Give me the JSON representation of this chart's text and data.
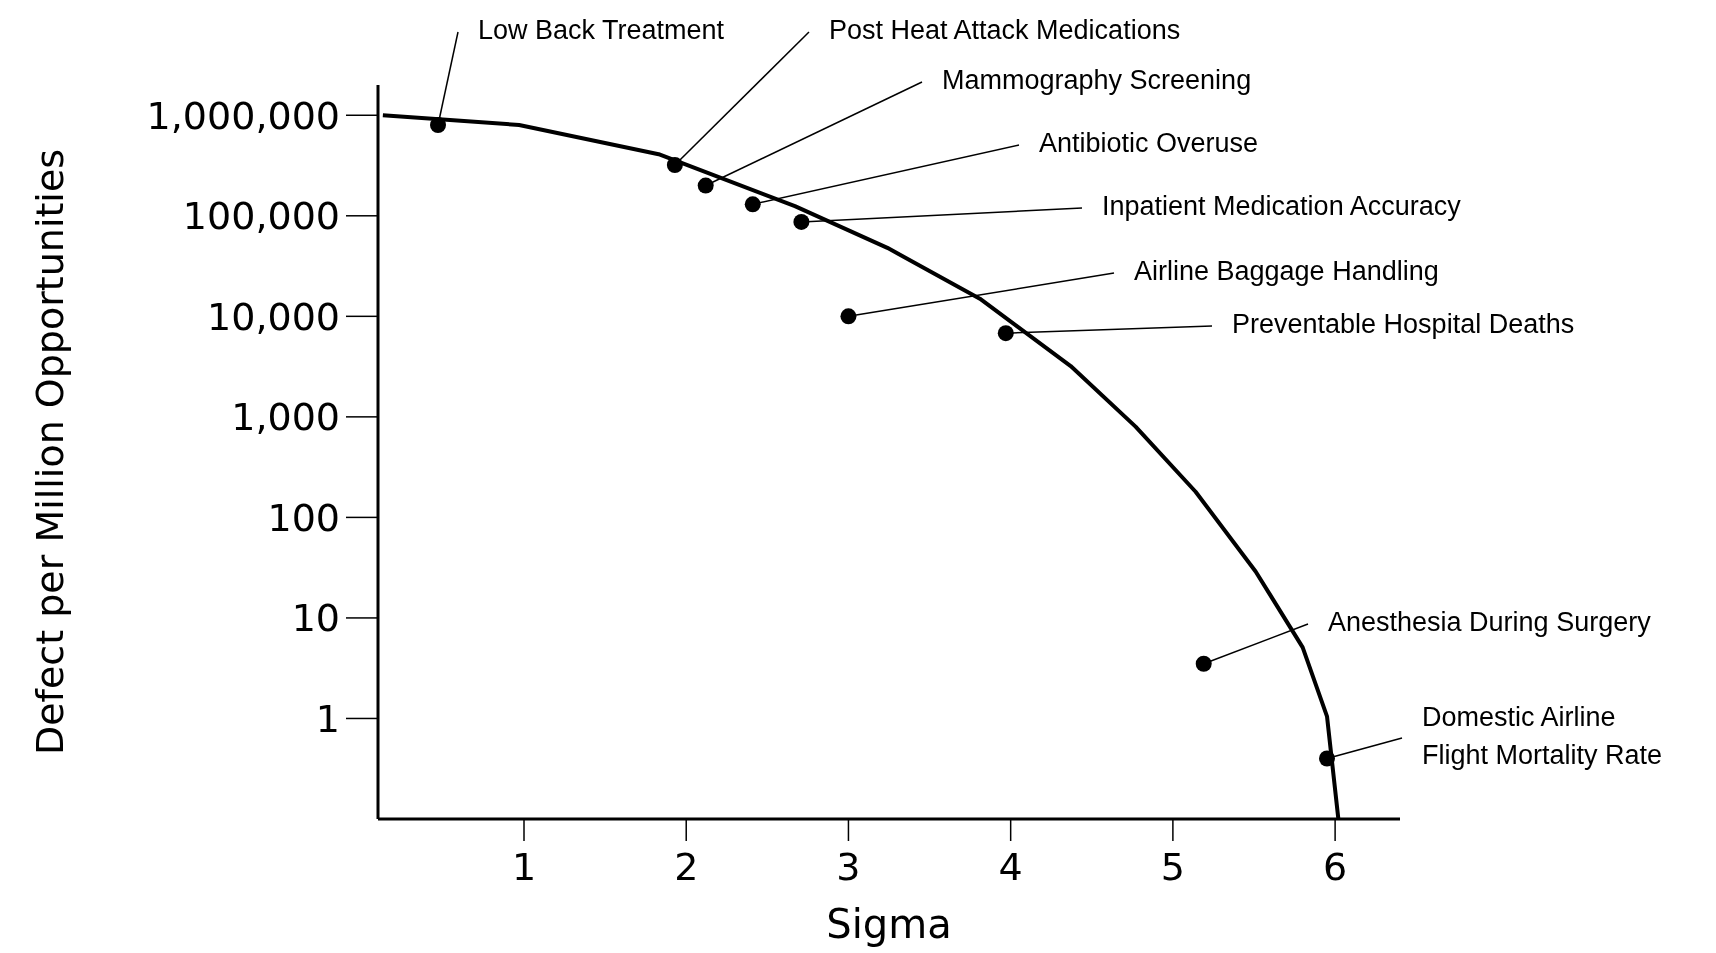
{
  "chart_data": {
    "type": "scatter",
    "xlabel": "Sigma",
    "ylabel": "Defect per Million Opportunities",
    "xlim": [
      0.1,
      6.4
    ],
    "xticks": [
      1,
      2,
      3,
      4,
      5,
      6
    ],
    "ylim": [
      0.1,
      2000000
    ],
    "yticks": [
      {
        "value": 1,
        "label": "1"
      },
      {
        "value": 10,
        "label": "10"
      },
      {
        "value": 100,
        "label": "100"
      },
      {
        "value": 1000,
        "label": "1,000"
      },
      {
        "value": 10000,
        "label": "10,000"
      },
      {
        "value": 100000,
        "label": "100,000"
      },
      {
        "value": 1000000,
        "label": "1,000,000"
      }
    ],
    "log": "y",
    "grid": false,
    "legend": false,
    "marker": "circle",
    "series": [
      {
        "color": "#000000",
        "x": [
          0.47,
          1.93,
          2.12,
          2.41,
          2.71,
          3.0,
          3.97,
          5.19,
          5.95
        ],
        "values": [
          800000,
          320000,
          200000,
          130000,
          87000,
          10000,
          6800,
          3.5,
          0.4
        ]
      },
      {
        "type": "line",
        "color": "#000000",
        "line_style": "solid",
        "marker": "none",
        "x": [
          0.13,
          0.97,
          1.83,
          2.67,
          3.24,
          3.81,
          4.37,
          4.77,
          5.14,
          5.51,
          5.8,
          5.95,
          6.02
        ],
        "values": [
          1000000,
          800000,
          410000,
          125000,
          48000,
          15000,
          3200,
          800,
          180,
          29,
          5.1,
          1.05,
          0.1
        ]
      }
    ],
    "annotations": [
      {
        "text": "Low Back Treatment",
        "x": 0.47,
        "y": 800000
      },
      {
        "text": "Post Heat Attack Medications",
        "x": 1.93,
        "y": 320000
      },
      {
        "text": "Mammography Screening",
        "x": 2.12,
        "y": 200000
      },
      {
        "text": "Antibiotic Overuse",
        "x": 2.41,
        "y": 130000
      },
      {
        "text": "Inpatient Medication Accuracy",
        "x": 2.71,
        "y": 87000
      },
      {
        "text": "Airline Baggage Handling",
        "x": 3.0,
        "y": 10000
      },
      {
        "text": "Preventable Hospital Deaths",
        "x": 3.97,
        "y": 6800
      },
      {
        "text": "Anesthesia During Surgery",
        "x": 5.19,
        "y": 3.5
      },
      {
        "text": "Domestic Airline\nFlight Mortality Rate",
        "x": 5.95,
        "y": 0.4
      }
    ]
  }
}
